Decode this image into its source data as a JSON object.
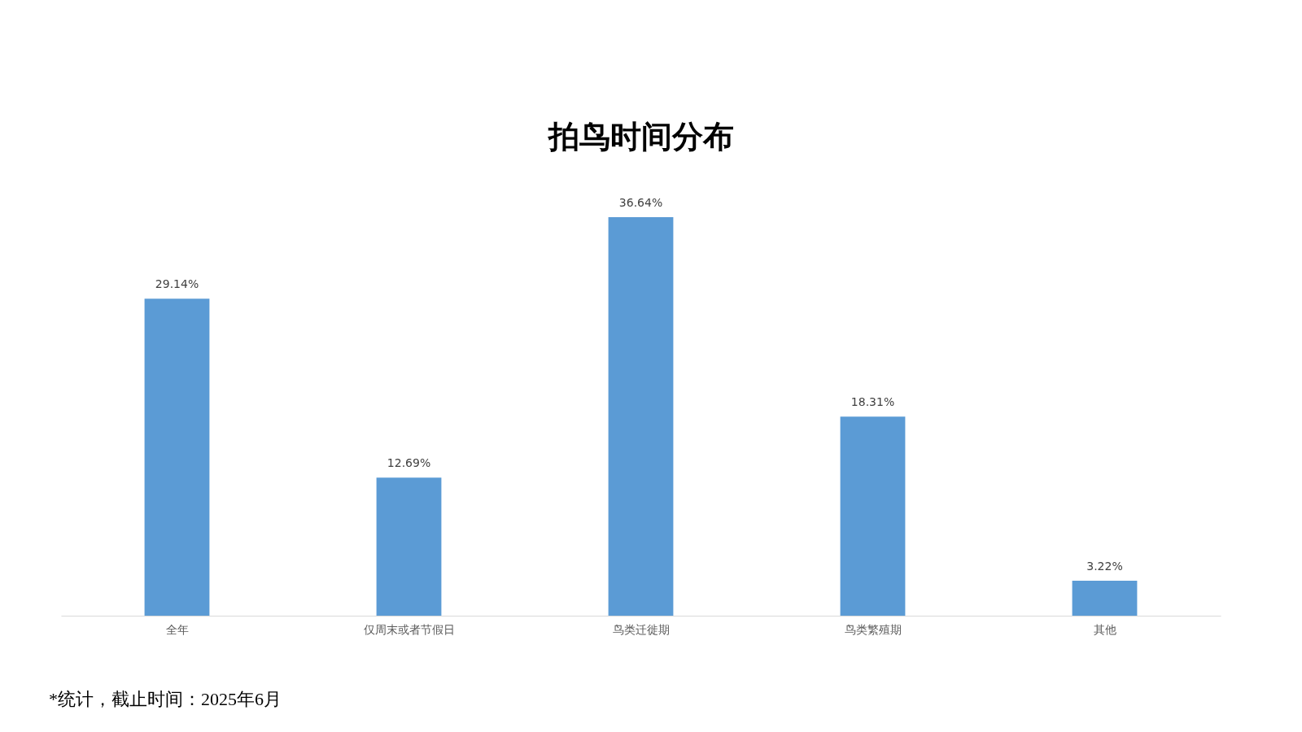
{
  "chart_data": {
    "type": "bar",
    "title": "拍鸟时间分布",
    "categories": [
      "全年",
      "仅周末或者节假日",
      "鸟类迁徙期",
      "鸟类繁殖期",
      "其他"
    ],
    "values": [
      29.14,
      12.69,
      36.64,
      18.31,
      3.22
    ],
    "value_labels": [
      "29.14%",
      "12.69%",
      "36.64%",
      "18.31%",
      "3.22%"
    ],
    "color": "#5b9bd5",
    "tick_labels": "x",
    "grid": false,
    "annotations": [
      "*统计，截止时间：2025年6月"
    ]
  }
}
